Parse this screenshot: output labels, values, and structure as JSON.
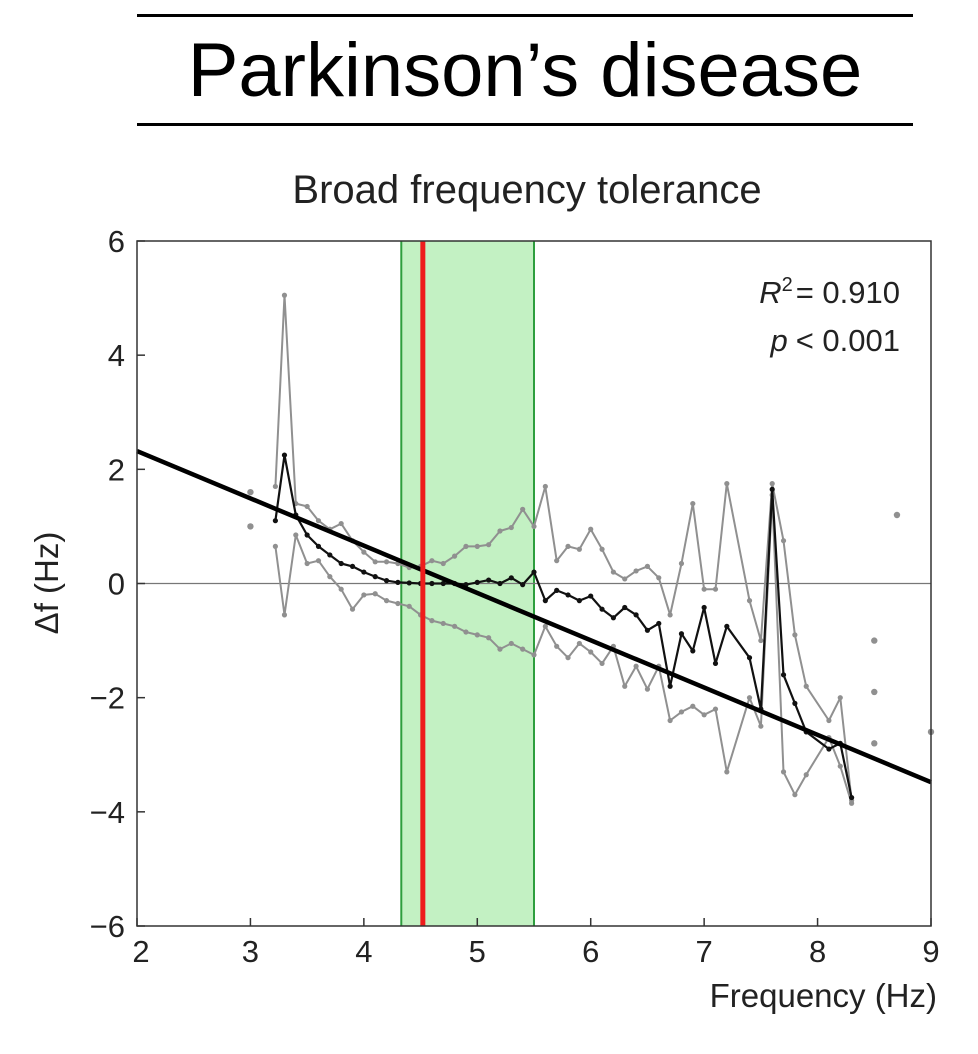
{
  "heading": "Parkinson’s disease",
  "chart_data": {
    "type": "line",
    "title": "Broad frequency tolerance",
    "xlabel": "Frequency (Hz)",
    "ylabel": "Δf (Hz)",
    "xlim": [
      2,
      9
    ],
    "ylim": [
      -6,
      6
    ],
    "xticks": [
      "2",
      "3",
      "4",
      "5",
      "6",
      "7",
      "8",
      "9"
    ],
    "yticks": [
      "6",
      "4",
      "2",
      "0",
      "−2",
      "−4",
      "−6"
    ],
    "grid": false,
    "annotation": {
      "r2_symbol": "R",
      "r2_superscript": "2",
      "r2_value": "= 0.910",
      "p_symbol": "p",
      "p_value": "< 0.001"
    },
    "colors": {
      "mean": "#111111",
      "bounds": "#909090",
      "fit": "#000000",
      "tolerance_fill": "#c3f1c3",
      "tolerance_edge": "#2e9e3e",
      "natural_frequency": "#ee1c1c"
    },
    "tolerance_band": [
      4.33,
      5.5
    ],
    "natural_frequency": 4.52,
    "fit_line": {
      "x": [
        2,
        9
      ],
      "y": [
        2.32,
        -3.48
      ]
    },
    "series": [
      {
        "role": "mean",
        "x": [
          3.22,
          3.3,
          3.4,
          3.5,
          3.6,
          3.7,
          3.8,
          3.9,
          4.0,
          4.1,
          4.2,
          4.3,
          4.4,
          4.5,
          4.6,
          4.7,
          4.8,
          4.9,
          5.0,
          5.1,
          5.2,
          5.3,
          5.4,
          5.5,
          5.6,
          5.7,
          5.8,
          5.9,
          6.0,
          6.1,
          6.2,
          6.3,
          6.4,
          6.5,
          6.6,
          6.7,
          6.8,
          6.9,
          7.0,
          7.1,
          7.2,
          7.4,
          7.5,
          7.6,
          7.7,
          7.8,
          7.9,
          8.1,
          8.2,
          8.3
        ],
        "y": [
          1.1,
          2.25,
          1.2,
          0.85,
          0.65,
          0.5,
          0.35,
          0.3,
          0.2,
          0.12,
          0.05,
          0.02,
          0.01,
          0.0,
          0.0,
          0.0,
          0.0,
          -0.02,
          0.02,
          0.06,
          0.0,
          0.1,
          -0.02,
          0.2,
          -0.3,
          -0.12,
          -0.2,
          -0.3,
          -0.22,
          -0.45,
          -0.6,
          -0.42,
          -0.55,
          -0.82,
          -0.7,
          -1.8,
          -0.88,
          -1.18,
          -0.42,
          -1.4,
          -0.75,
          -1.3,
          -2.2,
          1.65,
          -1.6,
          -2.1,
          -2.6,
          -2.9,
          -2.8,
          -3.75
        ]
      },
      {
        "role": "upper",
        "x": [
          3.22,
          3.3,
          3.4,
          3.5,
          3.6,
          3.7,
          3.8,
          3.9,
          4.0,
          4.1,
          4.2,
          4.3,
          4.4,
          4.5,
          4.6,
          4.7,
          4.8,
          4.9,
          5.0,
          5.1,
          5.2,
          5.3,
          5.4,
          5.5,
          5.6,
          5.7,
          5.8,
          5.9,
          6.0,
          6.1,
          6.2,
          6.3,
          6.4,
          6.5,
          6.6,
          6.7,
          6.8,
          6.9,
          7.0,
          7.1,
          7.2,
          7.4,
          7.5,
          7.6,
          7.7,
          7.8,
          7.9,
          8.1,
          8.2,
          8.3
        ],
        "y": [
          1.7,
          5.05,
          1.4,
          1.35,
          1.1,
          0.95,
          1.05,
          0.75,
          0.55,
          0.38,
          0.38,
          0.35,
          0.28,
          0.3,
          0.4,
          0.35,
          0.48,
          0.65,
          0.65,
          0.68,
          0.92,
          0.98,
          1.3,
          1.0,
          1.7,
          0.4,
          0.65,
          0.6,
          0.95,
          0.6,
          0.2,
          0.08,
          0.22,
          0.3,
          0.1,
          -0.55,
          0.35,
          1.4,
          -0.1,
          -0.1,
          1.75,
          -0.3,
          -1.0,
          1.75,
          0.75,
          -0.9,
          -1.8,
          -2.4,
          -2.0,
          -3.8
        ]
      },
      {
        "role": "lower",
        "x": [
          3.22,
          3.3,
          3.4,
          3.5,
          3.6,
          3.7,
          3.8,
          3.9,
          4.0,
          4.1,
          4.2,
          4.3,
          4.4,
          4.5,
          4.6,
          4.7,
          4.8,
          4.9,
          5.0,
          5.1,
          5.2,
          5.3,
          5.4,
          5.5,
          5.6,
          5.7,
          5.8,
          5.9,
          6.0,
          6.1,
          6.2,
          6.3,
          6.4,
          6.5,
          6.6,
          6.7,
          6.8,
          6.9,
          7.0,
          7.1,
          7.2,
          7.4,
          7.5,
          7.6,
          7.7,
          7.8,
          7.9,
          8.1,
          8.2,
          8.3
        ],
        "y": [
          0.65,
          -0.55,
          0.85,
          0.35,
          0.4,
          0.12,
          -0.1,
          -0.45,
          -0.2,
          -0.18,
          -0.3,
          -0.35,
          -0.4,
          -0.55,
          -0.65,
          -0.7,
          -0.75,
          -0.85,
          -0.9,
          -0.95,
          -1.15,
          -1.05,
          -1.15,
          -1.25,
          -0.75,
          -1.1,
          -1.3,
          -1.05,
          -1.2,
          -1.4,
          -1.1,
          -1.8,
          -1.45,
          -1.85,
          -1.45,
          -2.4,
          -2.25,
          -2.15,
          -2.3,
          -2.2,
          -3.3,
          -2.0,
          -2.5,
          1.55,
          -3.3,
          -3.7,
          -3.35,
          -2.7,
          -3.2,
          -3.85
        ]
      },
      {
        "role": "scattered",
        "x": [
          3.0,
          3.0,
          8.5,
          8.5,
          8.5,
          8.7,
          9.0
        ],
        "y": [
          1.6,
          1.0,
          -1.0,
          -1.9,
          -2.8,
          1.2,
          -2.6
        ]
      }
    ]
  }
}
